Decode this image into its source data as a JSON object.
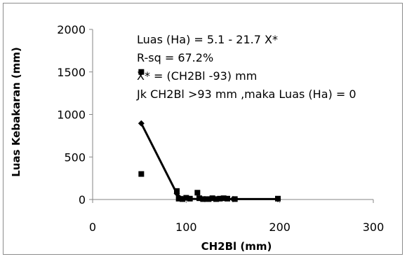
{
  "chart_data": {
    "type": "scatter",
    "xlabel": "CH2Bl  (mm)",
    "ylabel": "Luas Kebakaran (mm)",
    "xlim": [
      0,
      300
    ],
    "ylim": [
      0,
      2000
    ],
    "x_ticks": [
      0,
      100,
      200,
      300
    ],
    "y_ticks": [
      0,
      500,
      1000,
      1500,
      2000
    ],
    "grid": false,
    "legend": "none",
    "annotations": [
      "Luas (Ha) = 5.1 - 21.7 X*",
      "R-sq = 67.2%",
      "X* = (CH2Bl -93) mm",
      "Jk CH2Bl >93 mm ,maka Luas (Ha) = 0"
    ],
    "series": [
      {
        "marker": "square",
        "points": [
          [
            52,
            1500
          ],
          [
            52,
            300
          ],
          [
            90,
            100
          ],
          [
            92,
            10
          ],
          [
            96,
            5
          ],
          [
            100,
            20
          ],
          [
            104,
            10
          ],
          [
            112,
            80
          ],
          [
            114,
            15
          ],
          [
            118,
            5
          ],
          [
            124,
            5
          ],
          [
            128,
            15
          ],
          [
            132,
            5
          ],
          [
            136,
            10
          ],
          [
            140,
            15
          ],
          [
            144,
            10
          ],
          [
            152,
            5
          ],
          [
            198,
            10
          ]
        ]
      },
      {
        "marker": "diamond",
        "line": true,
        "points": [
          [
            52,
            895
          ],
          [
            90,
            70
          ],
          [
            96,
            8
          ],
          [
            120,
            5
          ],
          [
            150,
            5
          ],
          [
            198,
            5
          ]
        ]
      }
    ],
    "colors": {
      "marker": "#000000",
      "line": "#000000",
      "axis": "#868686"
    }
  }
}
